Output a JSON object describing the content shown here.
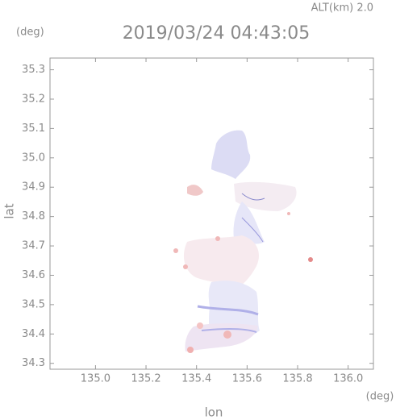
{
  "chart_data": {
    "type": "image",
    "title": "2019/03/24 04:43:05",
    "subtitle": "ALT(km) 2.0",
    "x_label": "lon",
    "y_label": "lat",
    "x_unit": "(deg)",
    "y_unit": "(deg)",
    "xlim": [
      134.82,
      136.1
    ],
    "ylim": [
      34.28,
      35.34
    ],
    "xticks": [
      {
        "value": 135,
        "label": "135.0"
      },
      135.2,
      135.4,
      135.6,
      135.8,
      {
        "value": 136,
        "label": "136.0"
      }
    ],
    "yticks": [
      34.3,
      34.4,
      34.5,
      34.6,
      34.7,
      34.8,
      34.9,
      {
        "value": 35,
        "label": "35.0"
      },
      35.1,
      35.2,
      35.3
    ]
  }
}
